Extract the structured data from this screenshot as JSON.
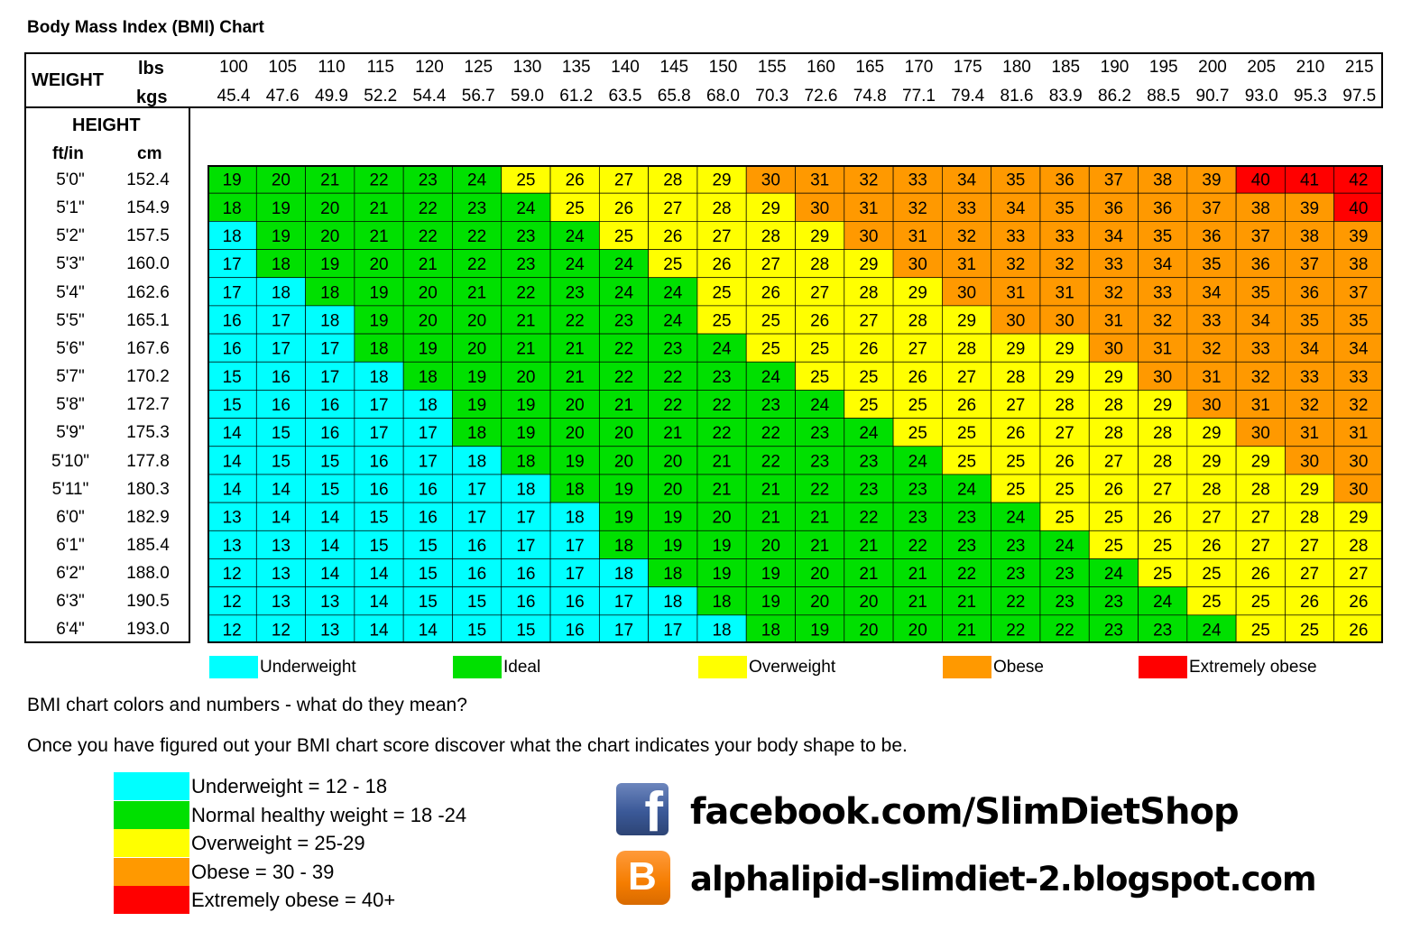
{
  "colors": {
    "underweight": "#00ffff",
    "ideal": "#00e000",
    "overweight": "#ffff00",
    "obese": "#ff9900",
    "extremely_obese": "#ff0000"
  },
  "chart_data": {
    "type": "table",
    "title": "Body Mass Index (BMI) Chart",
    "weight_label": "WEIGHT",
    "lbs_label": "lbs",
    "kgs_label": "kgs",
    "height_label": "HEIGHT",
    "ftin_label": "ft/in",
    "cm_label": "cm",
    "lbs": [
      "100",
      "105",
      "110",
      "115",
      "120",
      "125",
      "130",
      "135",
      "140",
      "145",
      "150",
      "155",
      "160",
      "165",
      "170",
      "175",
      "180",
      "185",
      "190",
      "195",
      "200",
      "205",
      "210",
      "215"
    ],
    "kgs": [
      "45.4",
      "47.6",
      "49.9",
      "52.2",
      "54.4",
      "56.7",
      "59.0",
      "61.2",
      "63.5",
      "65.8",
      "68.0",
      "70.3",
      "72.6",
      "74.8",
      "77.1",
      "79.4",
      "81.6",
      "83.9",
      "86.2",
      "88.5",
      "90.7",
      "93.0",
      "95.3",
      "97.5"
    ],
    "heights_ftin": [
      "5'0\"",
      "5'1\"",
      "5'2\"",
      "5'3\"",
      "5'4\"",
      "5'5\"",
      "5'6\"",
      "5'7\"",
      "5'8\"",
      "5'9\"",
      "5'10\"",
      "5'11\"",
      "6'0\"",
      "6'1\"",
      "6'2\"",
      "6'3\"",
      "6'4\""
    ],
    "heights_cm": [
      "152.4",
      "154.9",
      "157.5",
      "160.0",
      "162.6",
      "165.1",
      "167.6",
      "170.2",
      "172.7",
      "175.3",
      "177.8",
      "180.3",
      "182.9",
      "185.4",
      "188.0",
      "190.5",
      "193.0"
    ],
    "bmi": [
      [
        19,
        20,
        21,
        22,
        23,
        24,
        25,
        26,
        27,
        28,
        29,
        30,
        31,
        32,
        33,
        34,
        35,
        36,
        37,
        38,
        39,
        40,
        41,
        42
      ],
      [
        18,
        19,
        20,
        21,
        22,
        23,
        24,
        25,
        26,
        27,
        28,
        29,
        30,
        31,
        32,
        33,
        34,
        35,
        36,
        36,
        37,
        38,
        39,
        40
      ],
      [
        18,
        19,
        20,
        21,
        22,
        22,
        23,
        24,
        25,
        26,
        27,
        28,
        29,
        30,
        31,
        32,
        33,
        33,
        34,
        35,
        36,
        37,
        38,
        39
      ],
      [
        17,
        18,
        19,
        20,
        21,
        22,
        23,
        24,
        24,
        25,
        26,
        27,
        28,
        29,
        30,
        31,
        32,
        32,
        33,
        34,
        35,
        36,
        37,
        38
      ],
      [
        17,
        18,
        18,
        19,
        20,
        21,
        22,
        23,
        24,
        24,
        25,
        26,
        27,
        28,
        29,
        30,
        31,
        31,
        32,
        33,
        34,
        35,
        36,
        37
      ],
      [
        16,
        17,
        18,
        19,
        20,
        20,
        21,
        22,
        23,
        24,
        25,
        25,
        26,
        27,
        28,
        29,
        30,
        30,
        31,
        32,
        33,
        34,
        35,
        35
      ],
      [
        16,
        17,
        17,
        18,
        19,
        20,
        21,
        21,
        22,
        23,
        24,
        25,
        25,
        26,
        27,
        28,
        29,
        29,
        30,
        31,
        32,
        33,
        34,
        34
      ],
      [
        15,
        16,
        17,
        18,
        18,
        19,
        20,
        21,
        22,
        22,
        23,
        24,
        25,
        25,
        26,
        27,
        28,
        29,
        29,
        30,
        31,
        32,
        33,
        33
      ],
      [
        15,
        16,
        16,
        17,
        18,
        19,
        19,
        20,
        21,
        22,
        22,
        23,
        24,
        25,
        25,
        26,
        27,
        28,
        28,
        29,
        30,
        31,
        32,
        32
      ],
      [
        14,
        15,
        16,
        17,
        17,
        18,
        19,
        20,
        20,
        21,
        22,
        22,
        23,
        24,
        25,
        25,
        26,
        27,
        28,
        28,
        29,
        30,
        31,
        31
      ],
      [
        14,
        15,
        15,
        16,
        17,
        18,
        18,
        19,
        20,
        20,
        21,
        22,
        23,
        23,
        24,
        25,
        25,
        26,
        27,
        28,
        29,
        29,
        30,
        30
      ],
      [
        14,
        14,
        15,
        16,
        16,
        17,
        18,
        18,
        19,
        20,
        21,
        21,
        22,
        23,
        23,
        24,
        25,
        25,
        26,
        27,
        28,
        28,
        29,
        30
      ],
      [
        13,
        14,
        14,
        15,
        16,
        17,
        17,
        18,
        19,
        19,
        20,
        21,
        21,
        22,
        23,
        23,
        24,
        25,
        25,
        26,
        27,
        27,
        28,
        29
      ],
      [
        13,
        13,
        14,
        15,
        15,
        16,
        17,
        17,
        18,
        19,
        19,
        20,
        21,
        21,
        22,
        23,
        23,
        24,
        25,
        25,
        26,
        27,
        27,
        28
      ],
      [
        12,
        13,
        14,
        14,
        15,
        16,
        16,
        17,
        18,
        18,
        19,
        19,
        20,
        21,
        21,
        22,
        23,
        23,
        24,
        25,
        25,
        26,
        27,
        27
      ],
      [
        12,
        13,
        13,
        14,
        15,
        15,
        16,
        16,
        17,
        18,
        18,
        19,
        20,
        20,
        21,
        21,
        22,
        23,
        23,
        24,
        25,
        25,
        26,
        26
      ],
      [
        12,
        12,
        13,
        14,
        14,
        15,
        15,
        16,
        17,
        17,
        18,
        18,
        19,
        20,
        20,
        21,
        22,
        22,
        23,
        23,
        24,
        25,
        25,
        26
      ]
    ],
    "cell_category": [
      [
        "I",
        "I",
        "I",
        "I",
        "I",
        "I",
        "O",
        "O",
        "O",
        "O",
        "O",
        "B",
        "B",
        "B",
        "B",
        "B",
        "B",
        "B",
        "B",
        "B",
        "B",
        "X",
        "X",
        "X"
      ],
      [
        "I",
        "I",
        "I",
        "I",
        "I",
        "I",
        "I",
        "O",
        "O",
        "O",
        "O",
        "O",
        "B",
        "B",
        "B",
        "B",
        "B",
        "B",
        "B",
        "B",
        "B",
        "B",
        "B",
        "X"
      ],
      [
        "U",
        "I",
        "I",
        "I",
        "I",
        "I",
        "I",
        "I",
        "O",
        "O",
        "O",
        "O",
        "O",
        "B",
        "B",
        "B",
        "B",
        "B",
        "B",
        "B",
        "B",
        "B",
        "B",
        "B"
      ],
      [
        "U",
        "I",
        "I",
        "I",
        "I",
        "I",
        "I",
        "I",
        "I",
        "O",
        "O",
        "O",
        "O",
        "O",
        "B",
        "B",
        "B",
        "B",
        "B",
        "B",
        "B",
        "B",
        "B",
        "B"
      ],
      [
        "U",
        "U",
        "I",
        "I",
        "I",
        "I",
        "I",
        "I",
        "I",
        "I",
        "O",
        "O",
        "O",
        "O",
        "O",
        "B",
        "B",
        "B",
        "B",
        "B",
        "B",
        "B",
        "B",
        "B"
      ],
      [
        "U",
        "U",
        "U",
        "I",
        "I",
        "I",
        "I",
        "I",
        "I",
        "I",
        "O",
        "O",
        "O",
        "O",
        "O",
        "O",
        "B",
        "B",
        "B",
        "B",
        "B",
        "B",
        "B",
        "B"
      ],
      [
        "U",
        "U",
        "U",
        "I",
        "I",
        "I",
        "I",
        "I",
        "I",
        "I",
        "I",
        "O",
        "O",
        "O",
        "O",
        "O",
        "O",
        "O",
        "B",
        "B",
        "B",
        "B",
        "B",
        "B"
      ],
      [
        "U",
        "U",
        "U",
        "U",
        "I",
        "I",
        "I",
        "I",
        "I",
        "I",
        "I",
        "I",
        "O",
        "O",
        "O",
        "O",
        "O",
        "O",
        "O",
        "B",
        "B",
        "B",
        "B",
        "B"
      ],
      [
        "U",
        "U",
        "U",
        "U",
        "U",
        "I",
        "I",
        "I",
        "I",
        "I",
        "I",
        "I",
        "I",
        "O",
        "O",
        "O",
        "O",
        "O",
        "O",
        "O",
        "B",
        "B",
        "B",
        "B"
      ],
      [
        "U",
        "U",
        "U",
        "U",
        "U",
        "I",
        "I",
        "I",
        "I",
        "I",
        "I",
        "I",
        "I",
        "I",
        "O",
        "O",
        "O",
        "O",
        "O",
        "O",
        "O",
        "B",
        "B",
        "B"
      ],
      [
        "U",
        "U",
        "U",
        "U",
        "U",
        "U",
        "I",
        "I",
        "I",
        "I",
        "I",
        "I",
        "I",
        "I",
        "I",
        "O",
        "O",
        "O",
        "O",
        "O",
        "O",
        "O",
        "B",
        "B"
      ],
      [
        "U",
        "U",
        "U",
        "U",
        "U",
        "U",
        "U",
        "I",
        "I",
        "I",
        "I",
        "I",
        "I",
        "I",
        "I",
        "I",
        "O",
        "O",
        "O",
        "O",
        "O",
        "O",
        "O",
        "B"
      ],
      [
        "U",
        "U",
        "U",
        "U",
        "U",
        "U",
        "U",
        "U",
        "I",
        "I",
        "I",
        "I",
        "I",
        "I",
        "I",
        "I",
        "I",
        "O",
        "O",
        "O",
        "O",
        "O",
        "O",
        "O"
      ],
      [
        "U",
        "U",
        "U",
        "U",
        "U",
        "U",
        "U",
        "U",
        "I",
        "I",
        "I",
        "I",
        "I",
        "I",
        "I",
        "I",
        "I",
        "I",
        "O",
        "O",
        "O",
        "O",
        "O",
        "O"
      ],
      [
        "U",
        "U",
        "U",
        "U",
        "U",
        "U",
        "U",
        "U",
        "U",
        "I",
        "I",
        "I",
        "I",
        "I",
        "I",
        "I",
        "I",
        "I",
        "I",
        "O",
        "O",
        "O",
        "O",
        "O"
      ],
      [
        "U",
        "U",
        "U",
        "U",
        "U",
        "U",
        "U",
        "U",
        "U",
        "U",
        "I",
        "I",
        "I",
        "I",
        "I",
        "I",
        "I",
        "I",
        "I",
        "I",
        "O",
        "O",
        "O",
        "O"
      ],
      [
        "U",
        "U",
        "U",
        "U",
        "U",
        "U",
        "U",
        "U",
        "U",
        "U",
        "U",
        "I",
        "I",
        "I",
        "I",
        "I",
        "I",
        "I",
        "I",
        "I",
        "I",
        "O",
        "O",
        "O"
      ]
    ],
    "legend": [
      {
        "key": "U",
        "label": "Underweight"
      },
      {
        "key": "I",
        "label": "Ideal"
      },
      {
        "key": "O",
        "label": "Overweight"
      },
      {
        "key": "B",
        "label": "Obese"
      },
      {
        "key": "X",
        "label": "Extremely obese"
      }
    ]
  },
  "explanation": {
    "question": "BMI chart colors and numbers - what do they mean?",
    "intro": "Once you have figured out your BMI chart score discover what the chart indicates your body shape to be.",
    "ranges": [
      "Underweight = 12 - 18",
      "Normal healthy weight = 18 -24",
      "Overweight = 25-29",
      "Obese = 30 - 39",
      "Extremely obese = 40+"
    ]
  },
  "social": {
    "facebook_icon": "facebook-icon",
    "facebook_url": "facebook.com/SlimDietShop",
    "blogger_icon": "blogger-icon",
    "blog_url": "alphalipid-slimdiet-2.blogspot.com"
  }
}
